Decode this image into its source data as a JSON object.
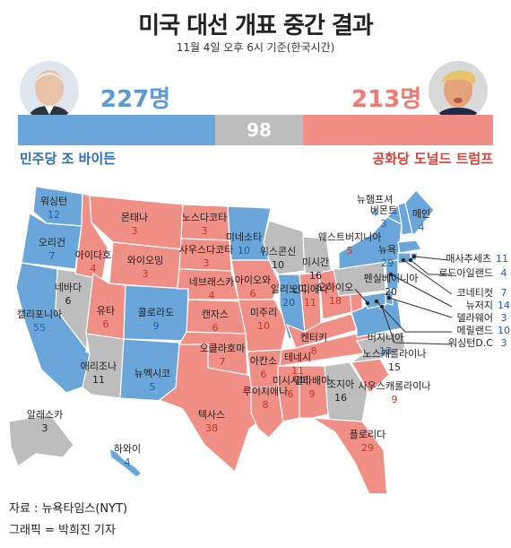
{
  "header": {
    "title": "미국 대선 개표 중간 결과",
    "subtitle": "11월 4일 오후 6시 기준(한국시간)"
  },
  "tally": {
    "dem_votes": "227명",
    "rep_votes": "213명",
    "undecided": "98",
    "dem_label": "민주당 조 바이든",
    "rep_label": "공화당 도널드 트럼프"
  },
  "colors": {
    "dem": "#6aa6da",
    "rep": "#ef8f86",
    "undecided": "#bdbdbd",
    "dem_text": "#1f5fa8",
    "rep_text": "#c8352c"
  },
  "states": [
    {
      "id": "wa",
      "name": "워싱턴",
      "votes": "12",
      "party": "dem"
    },
    {
      "id": "or",
      "name": "오리건",
      "votes": "7",
      "party": "dem"
    },
    {
      "id": "ca",
      "name": "캘리포니아",
      "votes": "55",
      "party": "dem"
    },
    {
      "id": "nv",
      "name": "네바다",
      "votes": "6",
      "party": "und"
    },
    {
      "id": "id",
      "name": "아이다호",
      "votes": "4",
      "party": "rep"
    },
    {
      "id": "mt",
      "name": "몬태나",
      "votes": "3",
      "party": "rep"
    },
    {
      "id": "wy",
      "name": "와이오밍",
      "votes": "3",
      "party": "rep"
    },
    {
      "id": "ut",
      "name": "유타",
      "votes": "6",
      "party": "rep"
    },
    {
      "id": "co",
      "name": "콜로라도",
      "votes": "9",
      "party": "dem"
    },
    {
      "id": "az",
      "name": "애리조나",
      "votes": "11",
      "party": "und"
    },
    {
      "id": "nm",
      "name": "뉴멕시코",
      "votes": "5",
      "party": "dem"
    },
    {
      "id": "nd",
      "name": "노스다코타",
      "votes": "3",
      "party": "rep"
    },
    {
      "id": "sd",
      "name": "사우스다코타",
      "votes": "3",
      "party": "rep"
    },
    {
      "id": "ne",
      "name": "네브래스카",
      "votes": "4",
      "party": "rep"
    },
    {
      "id": "ks",
      "name": "캔자스",
      "votes": "6",
      "party": "rep"
    },
    {
      "id": "ok",
      "name": "오클라호마",
      "votes": "7",
      "party": "rep"
    },
    {
      "id": "tx",
      "name": "텍사스",
      "votes": "38",
      "party": "rep"
    },
    {
      "id": "mn",
      "name": "미네소타",
      "votes": "10",
      "party": "dem"
    },
    {
      "id": "ia",
      "name": "아이오와",
      "votes": "6",
      "party": "rep"
    },
    {
      "id": "mo",
      "name": "미주리",
      "votes": "10",
      "party": "rep"
    },
    {
      "id": "ar",
      "name": "아칸소",
      "votes": "6",
      "party": "rep"
    },
    {
      "id": "la",
      "name": "루이지애나",
      "votes": "8",
      "party": "rep"
    },
    {
      "id": "wi",
      "name": "위스콘신",
      "votes": "10",
      "party": "und"
    },
    {
      "id": "il",
      "name": "일리노이",
      "votes": "20",
      "party": "dem"
    },
    {
      "id": "mi",
      "name": "미시간",
      "votes": "16",
      "party": "und"
    },
    {
      "id": "in",
      "name": "인디애나",
      "votes": "11",
      "party": "rep"
    },
    {
      "id": "oh",
      "name": "오하이오",
      "votes": "18",
      "party": "rep"
    },
    {
      "id": "ky",
      "name": "켄터키",
      "votes": "8",
      "party": "rep"
    },
    {
      "id": "tn",
      "name": "테네시",
      "votes": "11",
      "party": "rep"
    },
    {
      "id": "ms",
      "name": "미시시피",
      "votes": "6",
      "party": "rep"
    },
    {
      "id": "al",
      "name": "앨라배마",
      "votes": "9",
      "party": "rep"
    },
    {
      "id": "ga",
      "name": "조지아",
      "votes": "16",
      "party": "und"
    },
    {
      "id": "fl",
      "name": "플로리다",
      "votes": "29",
      "party": "rep"
    },
    {
      "id": "sc",
      "name": "사우스캐롤라이나",
      "votes": "9",
      "party": "rep"
    },
    {
      "id": "nc",
      "name": "노스캐롤라이나",
      "votes": "15",
      "party": "und"
    },
    {
      "id": "va",
      "name": "버지니아",
      "votes": "13",
      "party": "dem"
    },
    {
      "id": "wv",
      "name": "웨스트버지니아",
      "votes": "5",
      "party": "rep"
    },
    {
      "id": "pa",
      "name": "펜실베이니아",
      "votes": "20",
      "party": "und"
    },
    {
      "id": "ny",
      "name": "뉴욕",
      "votes": "29",
      "party": "dem"
    },
    {
      "id": "vt",
      "name": "버몬트",
      "votes": "3",
      "party": "dem"
    },
    {
      "id": "nh",
      "name": "뉴햄프셔",
      "votes": "4",
      "party": "dem"
    },
    {
      "id": "me",
      "name": "메인",
      "votes": "4",
      "party": "dem"
    },
    {
      "id": "ma",
      "name": "매사추세츠",
      "votes": "11",
      "party": "dem"
    },
    {
      "id": "ri",
      "name": "로드아일랜드",
      "votes": "4",
      "party": "dem"
    },
    {
      "id": "ct",
      "name": "코네티컷",
      "votes": "7",
      "party": "dem"
    },
    {
      "id": "nj",
      "name": "뉴저지",
      "votes": "14",
      "party": "dem"
    },
    {
      "id": "de",
      "name": "델라웨어",
      "votes": "3",
      "party": "dem"
    },
    {
      "id": "md",
      "name": "메릴랜드",
      "votes": "10",
      "party": "dem"
    },
    {
      "id": "dc",
      "name": "워싱턴D.C",
      "votes": "3",
      "party": "dem"
    },
    {
      "id": "ak",
      "name": "알래스카",
      "votes": "3",
      "party": "und"
    },
    {
      "id": "hi",
      "name": "하와이",
      "votes": "4",
      "party": "dem"
    }
  ],
  "footer": {
    "source": "자료 : 뉴욕타임스(NYT)",
    "credit": "그래픽 = 박희진 기자"
  }
}
